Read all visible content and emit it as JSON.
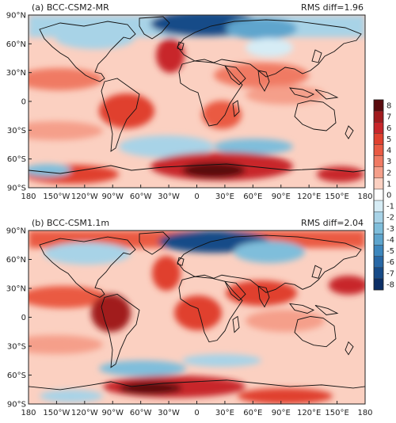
{
  "colorbar": {
    "levels": [
      "8",
      "7",
      "6",
      "5",
      "4",
      "3",
      "2",
      "1",
      "0",
      "-1",
      "-2",
      "-3",
      "-4",
      "-5",
      "-6",
      "-7",
      "-8"
    ],
    "colors": [
      "#5a0b0e",
      "#a11b1d",
      "#c8262a",
      "#e0402e",
      "#ea5a43",
      "#f07a63",
      "#f59f8a",
      "#fbd0c1",
      "#ffffff",
      "#d6ecf5",
      "#a8d3e7",
      "#7fbedb",
      "#5ea5cd",
      "#3d87bd",
      "#2868a6",
      "#174b88",
      "#0c2f66"
    ]
  },
  "x_ticks": [
    "180",
    "150°W",
    "120°W",
    "90°W",
    "60°W",
    "30°W",
    "0",
    "30°E",
    "60°E",
    "90°E",
    "120°E",
    "150°E",
    "180"
  ],
  "y_ticks": [
    "90°N",
    "60°N",
    "30°N",
    "0",
    "30°S",
    "60°S",
    "90°S"
  ],
  "panels": [
    {
      "title": "(a) BCC-CSM2-MR",
      "rms": "RMS diff=1.96"
    },
    {
      "title": "(b) BCC-CSM1.1m",
      "rms": "RMS diff=2.04"
    }
  ]
}
